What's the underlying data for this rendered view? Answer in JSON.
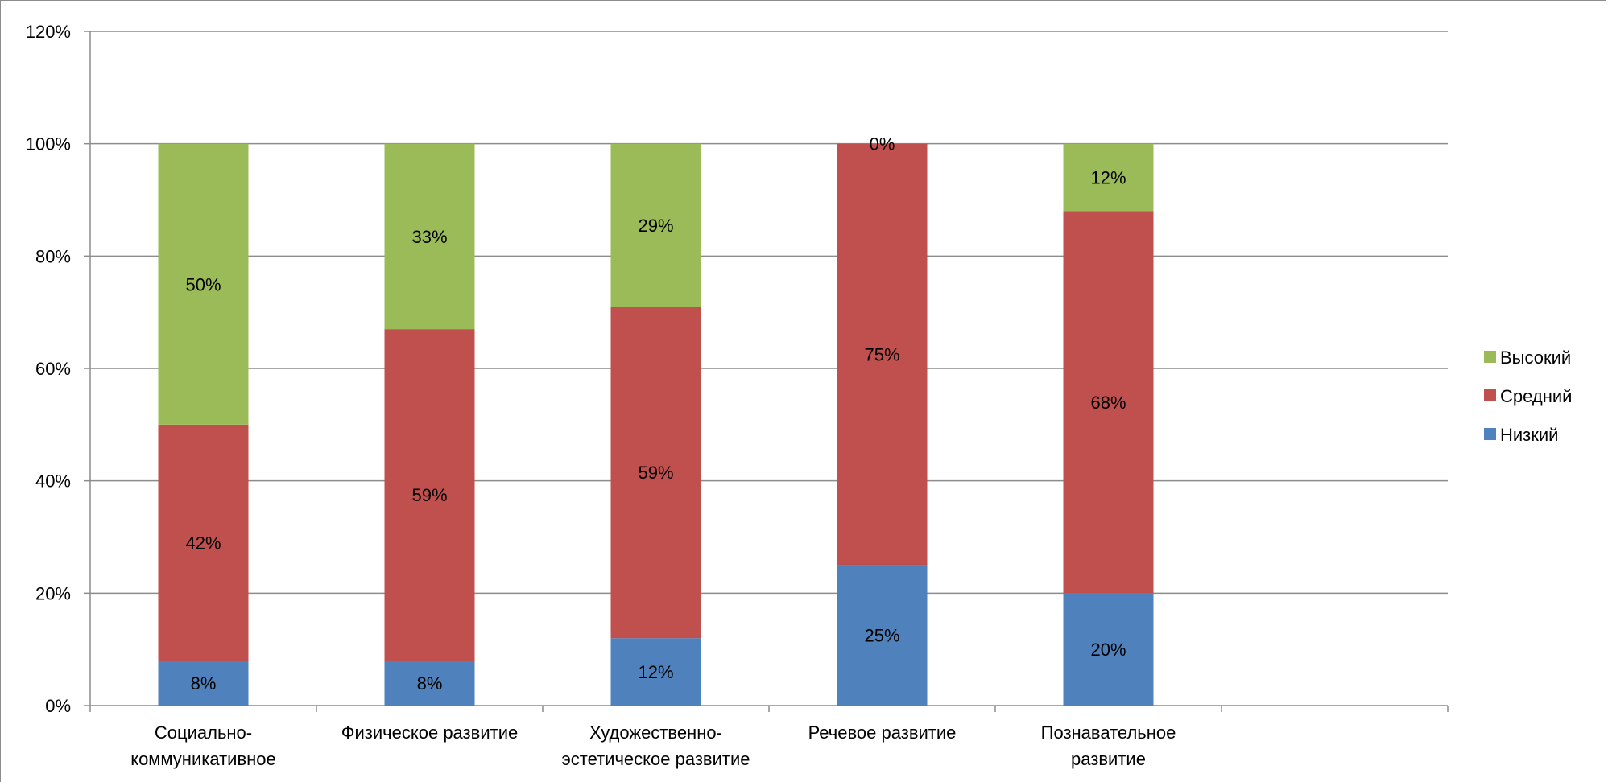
{
  "chart_data": {
    "type": "bar",
    "stacked": true,
    "categories": [
      [
        "Социально-",
        "коммуникативное"
      ],
      [
        "Физическое развитие"
      ],
      [
        "Художественно-",
        "эстетическое развитие"
      ],
      [
        "Речевое  развитие"
      ],
      [
        "Познавательное",
        "развитие"
      ],
      [
        ""
      ]
    ],
    "series": [
      {
        "name": "Низкий",
        "color": "#4f81bd",
        "values": [
          8,
          8,
          12,
          25,
          20,
          null
        ],
        "labels": [
          "8%",
          "8%",
          "12%",
          "25%",
          "20%",
          ""
        ]
      },
      {
        "name": "Средний",
        "color": "#c0504d",
        "values": [
          42,
          59,
          59,
          75,
          68,
          null
        ],
        "labels": [
          "42%",
          "59%",
          "59%",
          "75%",
          "68%",
          ""
        ]
      },
      {
        "name": "Высокий",
        "color": "#9bbb59",
        "values": [
          50,
          33,
          29,
          0,
          12,
          null
        ],
        "labels": [
          "50%",
          "33%",
          "29%",
          "0%",
          "12%",
          ""
        ]
      }
    ],
    "yticks": [
      "0%",
      "20%",
      "40%",
      "60%",
      "80%",
      "100%",
      "120%"
    ],
    "ylim": [
      0,
      120
    ],
    "grid": true,
    "legend_position": "right",
    "legend_order": [
      "Высокий",
      "Средний",
      "Низкий"
    ],
    "title": "",
    "xlabel": "",
    "ylabel": ""
  }
}
